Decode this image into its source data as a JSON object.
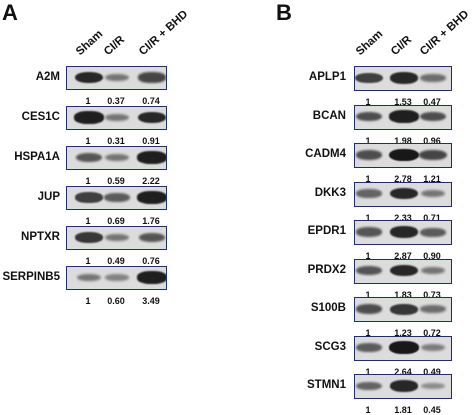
{
  "figure": {
    "panels": [
      {
        "letter": "A",
        "columns": [
          "Sham",
          "CI/R",
          "CI/R + BHD"
        ],
        "rows": [
          {
            "protein": "A2M",
            "values": [
              "1",
              "0.37",
              "0.74"
            ],
            "intensity": [
              0.85,
              0.35,
              0.65
            ]
          },
          {
            "protein": "CES1C",
            "values": [
              "1",
              "0.31",
              "0.91"
            ],
            "intensity": [
              0.9,
              0.35,
              0.85
            ]
          },
          {
            "protein": "HSPA1A",
            "values": [
              "1",
              "0.59",
              "2.22"
            ],
            "intensity": [
              0.55,
              0.35,
              0.9
            ]
          },
          {
            "protein": "JUP",
            "values": [
              "1",
              "0.69",
              "1.76"
            ],
            "intensity": [
              0.7,
              0.5,
              0.9
            ]
          },
          {
            "protein": "NPTXR",
            "values": [
              "1",
              "0.49",
              "0.76"
            ],
            "intensity": [
              0.75,
              0.35,
              0.55
            ]
          },
          {
            "protein": "SERPINB5",
            "values": [
              "1",
              "0.60",
              "3.49"
            ],
            "intensity": [
              0.35,
              0.25,
              0.9
            ]
          }
        ]
      },
      {
        "letter": "B",
        "columns": [
          "Sham",
          "CI/R",
          "CI/R + BHD"
        ],
        "rows": [
          {
            "protein": "APLP1",
            "values": [
              "1",
              "1.53",
              "0.47"
            ],
            "intensity": [
              0.7,
              0.85,
              0.4
            ]
          },
          {
            "protein": "BCAN",
            "values": [
              "1",
              "1.98",
              "0.96"
            ],
            "intensity": [
              0.6,
              0.9,
              0.6
            ]
          },
          {
            "protein": "CADM4",
            "values": [
              "1",
              "2.78",
              "1.21"
            ],
            "intensity": [
              0.6,
              0.95,
              0.65
            ]
          },
          {
            "protein": "DKK3",
            "values": [
              "1",
              "2.33",
              "0.71"
            ],
            "intensity": [
              0.45,
              0.85,
              0.35
            ]
          },
          {
            "protein": "EPDR1",
            "values": [
              "1",
              "2.87",
              "0.90"
            ],
            "intensity": [
              0.55,
              0.85,
              0.5
            ]
          },
          {
            "protein": "PRDX2",
            "values": [
              "1",
              "1.83",
              "0.73"
            ],
            "intensity": [
              0.55,
              0.85,
              0.35
            ]
          },
          {
            "protein": "S100B",
            "values": [
              "1",
              "1.23",
              "0.72"
            ],
            "intensity": [
              0.6,
              0.75,
              0.4
            ]
          },
          {
            "protein": "SCG3",
            "values": [
              "1",
              "2.64",
              "0.49"
            ],
            "intensity": [
              0.5,
              0.95,
              0.3
            ]
          },
          {
            "protein": "STMN1",
            "values": [
              "1",
              "1.81",
              "0.45"
            ],
            "intensity": [
              0.45,
              0.85,
              0.2
            ]
          }
        ]
      }
    ]
  }
}
